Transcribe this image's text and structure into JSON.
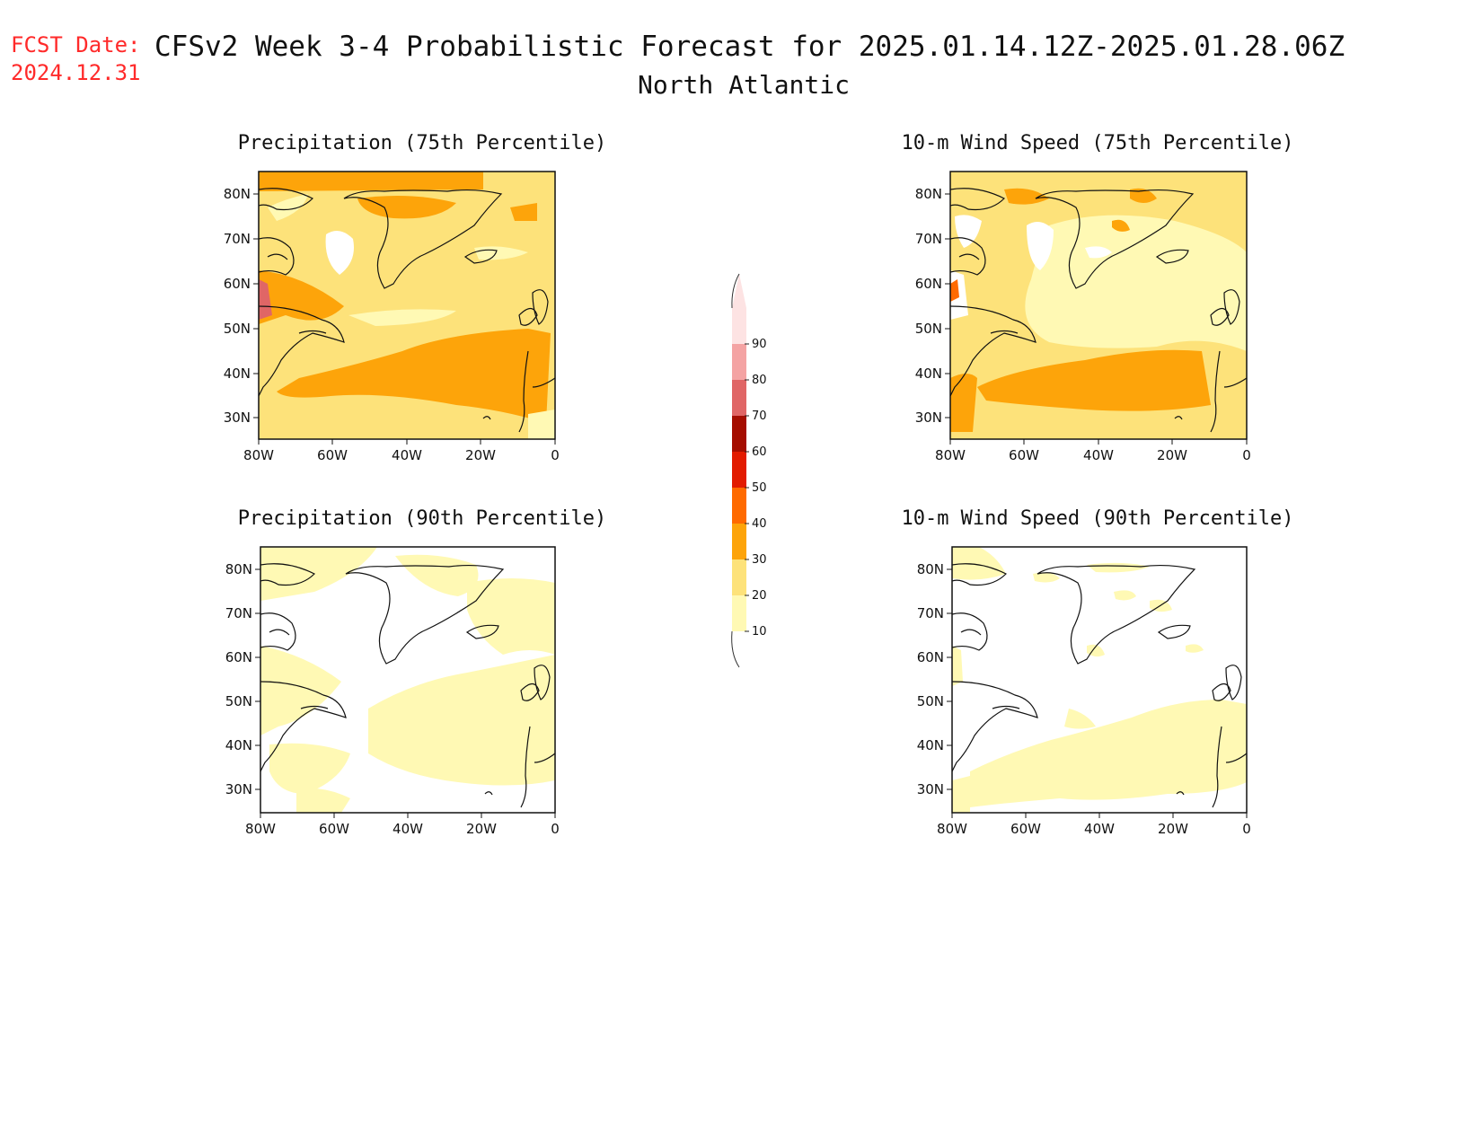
{
  "header": {
    "fcst_label": "FCST Date:",
    "fcst_date": "2024.12.31",
    "title": "CFSv2 Week 3-4 Probabilistic Forecast for 2025.01.14.12Z-2025.01.28.06Z",
    "region": "North Atlantic"
  },
  "colors": {
    "c10": "#fff9b4",
    "c20": "#fde27a",
    "c30": "#fda40a",
    "c40": "#ff6a00",
    "c50": "#e21b00",
    "c60": "#a50d00",
    "c70": "#e06666",
    "c80": "#f4a3a3",
    "c90": "#fde3e3",
    "land_line": "#111111"
  },
  "lat_labels": [
    "80N",
    "70N",
    "60N",
    "50N",
    "40N",
    "30N"
  ],
  "lon_labels": [
    "80W",
    "60W",
    "40W",
    "20W",
    "0"
  ],
  "panels": [
    {
      "id": "precip-75",
      "title": "Precipitation (75th Percentile)"
    },
    {
      "id": "wind-75",
      "title": "10-m Wind Speed (75th Percentile)"
    },
    {
      "id": "precip-90",
      "title": "Precipitation (90th Percentile)"
    },
    {
      "id": "wind-90",
      "title": "10-m Wind Speed (90th Percentile)"
    }
  ],
  "colorbar": {
    "levels": [
      "10",
      "20",
      "30",
      "40",
      "50",
      "60",
      "70",
      "80",
      "90"
    ]
  }
}
